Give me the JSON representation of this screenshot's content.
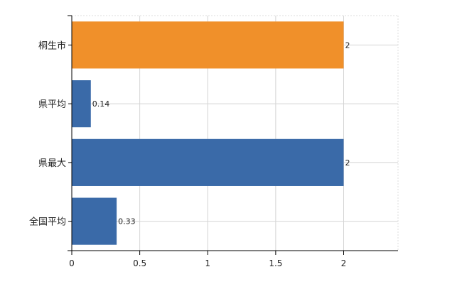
{
  "chart_data": {
    "type": "bar",
    "orientation": "horizontal",
    "categories": [
      "桐生市",
      "県平均",
      "県最大",
      "全国平均"
    ],
    "values": [
      2,
      0.14,
      2,
      0.33
    ],
    "value_labels": [
      "2",
      "0.14",
      "2",
      "0.33"
    ],
    "bar_colors": [
      "#f0902a",
      "#3a6aa8",
      "#3a6aa8",
      "#3a6aa8"
    ],
    "xlim": [
      0,
      2.4
    ],
    "x_ticks": [
      0,
      0.5,
      1,
      1.5,
      2
    ],
    "x_tick_labels": [
      "0",
      "0.5",
      "1",
      "1.5",
      "2"
    ],
    "grid": true,
    "title": "",
    "xlabel": "",
    "ylabel": ""
  }
}
